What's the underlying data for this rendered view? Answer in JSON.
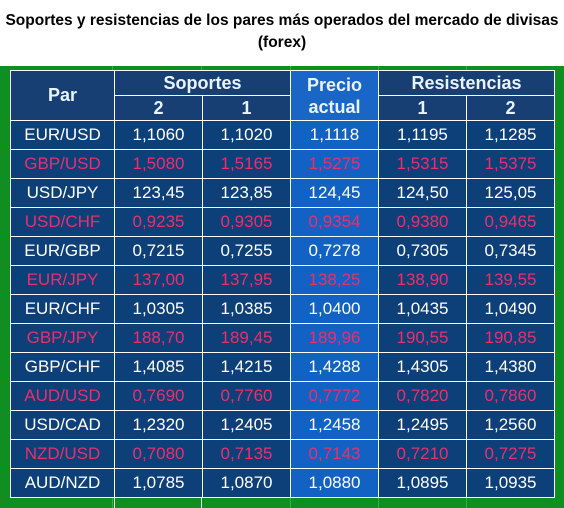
{
  "title": "Soportes y resistencias de los pares más operados del mercado de divisas (forex)",
  "header": {
    "par": "Par",
    "soportes": "Soportes",
    "precio_line1": "Precio",
    "precio_line2": "actual",
    "resistencias": "Resistencias",
    "s2": "2",
    "s1": "1",
    "r1": "1",
    "r2": "2"
  },
  "colors": {
    "white_text": "#ffffff",
    "pink_text": "#ea2f6c",
    "dark_blue": "#0d3f78",
    "price_blue": "#1162c2",
    "green_frame": "#0f8f1f"
  },
  "rows": [
    {
      "pair": "EUR/USD",
      "s2": "1,1060",
      "s1": "1,1020",
      "price": "1,1118",
      "r1": "1,1195",
      "r2": "1,1285"
    },
    {
      "pair": "GBP/USD",
      "s2": "1,5080",
      "s1": "1,5165",
      "price": "1,5275",
      "r1": "1,5315",
      "r2": "1,5375"
    },
    {
      "pair": "USD/JPY",
      "s2": "123,45",
      "s1": "123,85",
      "price": "124,45",
      "r1": "124,50",
      "r2": "125,05"
    },
    {
      "pair": "USD/CHF",
      "s2": "0,9235",
      "s1": "0,9305",
      "price": "0,9354",
      "r1": "0,9380",
      "r2": "0,9465"
    },
    {
      "pair": "EUR/GBP",
      "s2": "0,7215",
      "s1": "0,7255",
      "price": "0,7278",
      "r1": "0,7305",
      "r2": "0,7345"
    },
    {
      "pair": "EUR/JPY",
      "s2": "137,00",
      "s1": "137,95",
      "price": "138,25",
      "r1": "138,90",
      "r2": "139,55"
    },
    {
      "pair": "EUR/CHF",
      "s2": "1,0305",
      "s1": "1,0385",
      "price": "1,0400",
      "r1": "1,0435",
      "r2": "1,0490"
    },
    {
      "pair": "GBP/JPY",
      "s2": "188,70",
      "s1": "189,45",
      "price": "189,96",
      "r1": "190,55",
      "r2": "190,85"
    },
    {
      "pair": "GBP/CHF",
      "s2": "1,4085",
      "s1": "1,4215",
      "price": "1,4288",
      "r1": "1,4305",
      "r2": "1,4380"
    },
    {
      "pair": "AUD/USD",
      "s2": "0,7690",
      "s1": "0,7760",
      "price": "0,7772",
      "r1": "0,7820",
      "r2": "0,7860"
    },
    {
      "pair": "USD/CAD",
      "s2": "1,2320",
      "s1": "1,2405",
      "price": "1,2458",
      "r1": "1,2495",
      "r2": "1,2560"
    },
    {
      "pair": "NZD/USD",
      "s2": "0,7080",
      "s1": "0,7135",
      "price": "0,7143",
      "r1": "0,7210",
      "r2": "0,7275"
    },
    {
      "pair": "AUD/NZD",
      "s2": "1,0785",
      "s1": "1,0870",
      "price": "1,0880",
      "r1": "1,0895",
      "r2": "1,0935"
    }
  ]
}
